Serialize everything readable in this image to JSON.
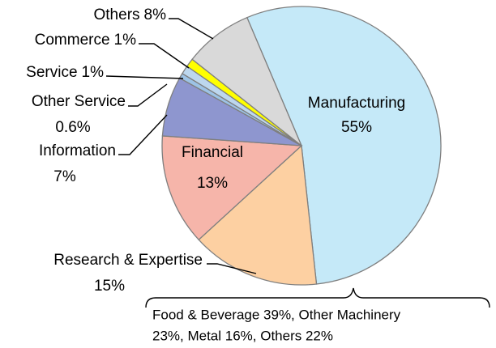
{
  "chart_data": {
    "type": "pie",
    "categories": [
      "Manufacturing",
      "Research & Expertise",
      "Financial",
      "Information",
      "Other Service",
      "Service",
      "Commerce",
      "Others"
    ],
    "values": [
      55,
      15,
      13,
      7,
      0.6,
      1,
      1,
      8
    ],
    "value_labels": [
      "55%",
      "15%",
      "13%",
      "7%",
      "0.6%",
      "1%",
      "1%",
      "8%"
    ],
    "colors": [
      "#c5e9f8",
      "#fdd0a2",
      "#f6b5aa",
      "#8e96cf",
      "#9dc3e6",
      "#bdd7ee",
      "#ffff00",
      "#d9d9d9"
    ],
    "annotation": [
      "Food & Beverage 39%, Other Machinery",
      "23%, Metal 16%, Others 22%"
    ]
  }
}
